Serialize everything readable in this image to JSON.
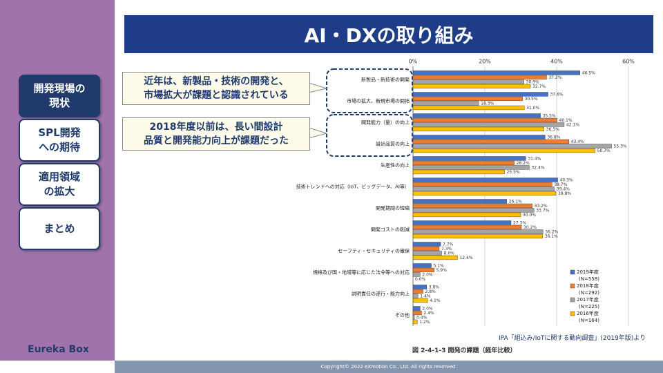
{
  "slide": {
    "title": "AI・DXの取り組み",
    "menu": [
      [
        "開発現場の",
        "現状"
      ],
      [
        "SPL開発",
        "への期待"
      ],
      [
        "適用領域",
        "の拡大"
      ],
      [
        "まとめ"
      ]
    ],
    "logo": "Eureka Box",
    "callouts": [
      [
        "近年は、新製品・技術の開発と、",
        "市場拡大が課題と認識されている"
      ],
      [
        "2018年度以前は、長い間設計",
        "品質と開発能力向上が課題だった"
      ]
    ],
    "source": "IPA「組込み/IoTに関する動向調査」(2019年版)より",
    "caption": "図 2-4-1-3  開発の課題（経年比較）",
    "footer": "Copyright© 2022 eXmotion Co., Ltd. All rights reserved."
  },
  "chart_data": {
    "type": "hbar",
    "categories": [
      "新製品・新技術の開発",
      "市場の拡大、新規市場の開拓",
      "開発能力（量）の向上",
      "設計品質の向上",
      "生産性の向上",
      "技術トレンドへの対応（IoT、ビッグデータ、AI等）",
      "開発期間の短縮",
      "開発コストの削減",
      "セーフティ・セキュリティの確保",
      "規格及び国・地域等に応じた法令等への対応",
      "説明責任の遂行・能力向上",
      "その他"
    ],
    "series": [
      {
        "name": "2019年度",
        "sample": "(N=558)",
        "color": "#4472c4",
        "values": [
          46.5,
          37.6,
          35.5,
          36.8,
          31.4,
          40.3,
          26.1,
          27.3,
          7.7,
          5.1,
          3.8,
          2.0
        ],
        "value_labels": [
          "46.5%",
          "37.6%",
          "35.5%",
          "36.8%",
          "31.4%",
          "40.3%",
          "26.1%",
          "27.3%",
          "7.7%",
          "5.1%",
          "3.8%",
          "2.0%"
        ]
      },
      {
        "name": "2018年度",
        "sample": "(N=292)",
        "color": "#ed7d31",
        "values": [
          37.2,
          30.5,
          40.1,
          43.4,
          28.2,
          38.7,
          33.2,
          30.2,
          7.3,
          5.9,
          2.8,
          2.4
        ],
        "value_labels": [
          "37.2%",
          "30.5%",
          "40.1%",
          "43.4%",
          "28.2%",
          "38.7%",
          "33.2%",
          "30.2%",
          "7.3%",
          "5.9%",
          "2.8%",
          "2.4%"
        ]
      },
      {
        "name": "2017年度",
        "sample": "(N=225)",
        "color": "#a5a5a5",
        "values": [
          30.9,
          18.3,
          42.1,
          55.3,
          32.4,
          39.4,
          33.7,
          36.2,
          8.0,
          2.0,
          1.4,
          0.4
        ],
        "value_labels": [
          "30.9%",
          "18.3%",
          "42.1%",
          "55.3%",
          "32.4%",
          "39.4%",
          "33.7%",
          "36.2%",
          "8.0%",
          "2.0%",
          "1.4%",
          "0.4%"
        ]
      },
      {
        "name": "2016年度",
        "sample": "(N=164)",
        "color": "#ffc000",
        "values": [
          32.7,
          31.0,
          36.5,
          50.7,
          25.5,
          39.8,
          30.0,
          36.1,
          12.4,
          0.0,
          4.1,
          1.2
        ],
        "value_labels": [
          "32.7%",
          "31.0%",
          "36.5%",
          "50.7%",
          "25.5%",
          "39.8%",
          "30.0%",
          "36.1%",
          "12.4%",
          "0.0%",
          "4.1%",
          "1.2%"
        ]
      }
    ],
    "xlim": [
      0,
      60
    ],
    "xticks": [
      {
        "value": 0,
        "label": "0%"
      },
      {
        "value": 20,
        "label": "20%"
      },
      {
        "value": 40,
        "label": "40%"
      },
      {
        "value": 60,
        "label": "60%"
      }
    ],
    "grid": true
  }
}
